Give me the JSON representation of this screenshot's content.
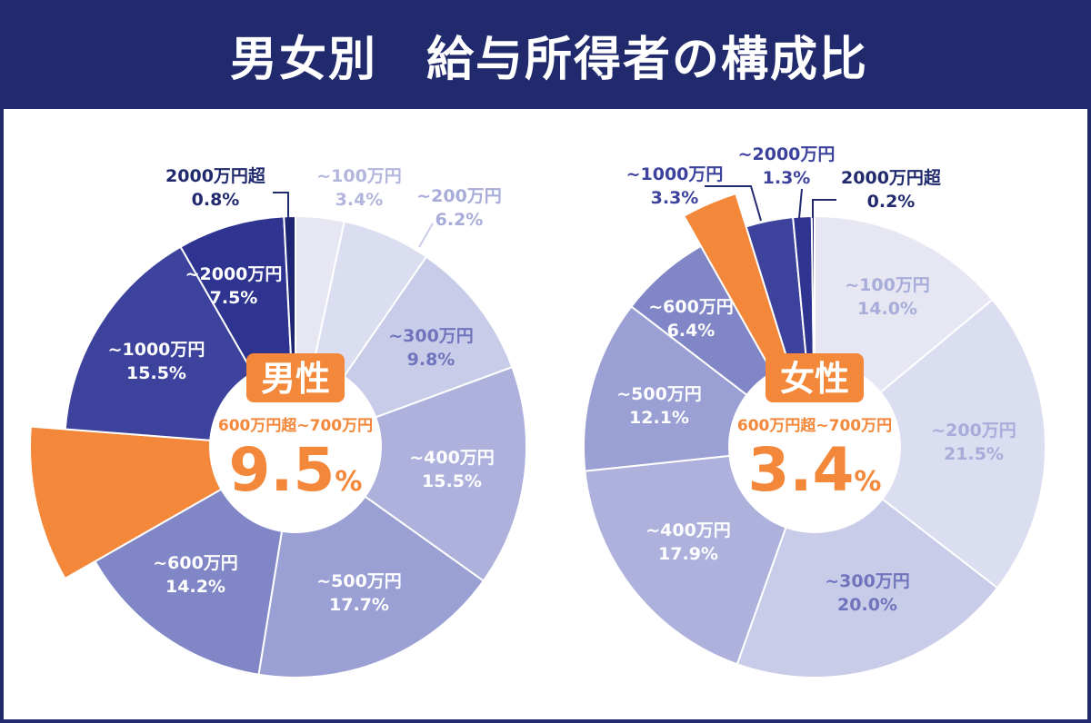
{
  "header": {
    "title": "男女別　給与所得者の構成比"
  },
  "colors": {
    "header_bg": "#202a6d",
    "highlight": "#f3873a",
    "slice_palette": [
      "#e6e7f3",
      "#dbddf0",
      "#c9cce8",
      "#adb1dc",
      "#9a9fd4",
      "#8186c7",
      "#7075c1",
      "#3d429d",
      "#2e3490",
      "#1e2674"
    ]
  },
  "chart_data": [
    {
      "type": "pie",
      "title": "男性",
      "highlight_label": "600万円超~700万円",
      "highlight_value": "9.5",
      "highlight_unit": "%",
      "categories": [
        "~100万円",
        "~200万円",
        "~300万円",
        "~400万円",
        "~500万円",
        "~600万円",
        "~700万円",
        "~1000万円",
        "~2000万円",
        "2000万円超"
      ],
      "values": [
        3.4,
        6.2,
        9.8,
        15.5,
        17.7,
        14.2,
        9.5,
        15.5,
        7.5,
        0.8
      ],
      "value_labels": [
        "3.4%",
        "6.2%",
        "9.8%",
        "15.5%",
        "17.7%",
        "14.2%",
        "",
        "15.5%",
        "7.5%",
        "0.8%"
      ],
      "highlight_index": 6
    },
    {
      "type": "pie",
      "title": "女性",
      "highlight_label": "600万円超~700万円",
      "highlight_value": "3.4",
      "highlight_unit": "%",
      "categories": [
        "~100万円",
        "~200万円",
        "~300万円",
        "~400万円",
        "~500万円",
        "~600万円",
        "~700万円",
        "~1000万円",
        "~2000万円",
        "2000万円超"
      ],
      "values": [
        14.0,
        21.5,
        20.0,
        17.9,
        12.1,
        6.4,
        3.4,
        3.3,
        1.3,
        0.2
      ],
      "value_labels": [
        "14.0%",
        "21.5%",
        "20.0%",
        "17.9%",
        "12.1%",
        "6.4%",
        "",
        "3.3%",
        "1.3%",
        "0.2%"
      ],
      "highlight_index": 6
    }
  ]
}
